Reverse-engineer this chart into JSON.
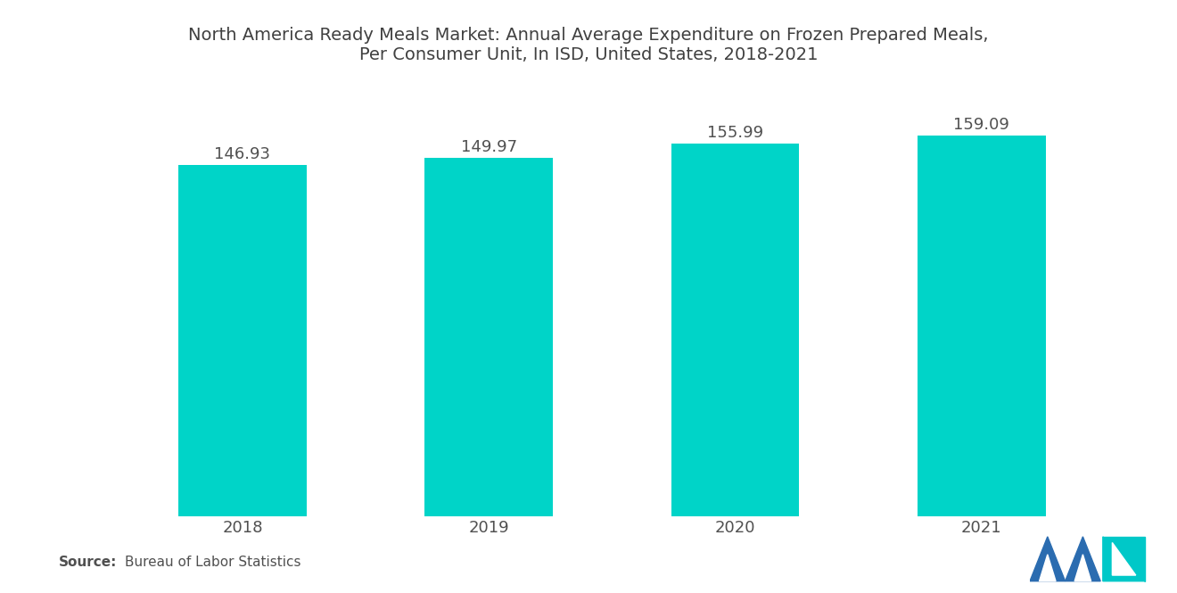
{
  "title_line1": "North America Ready Meals Market: Annual Average Expenditure on Frozen Prepared Meals,",
  "title_line2": "Per Consumer Unit, In ISD, United States, 2018-2021",
  "categories": [
    "2018",
    "2019",
    "2020",
    "2021"
  ],
  "values": [
    146.93,
    149.97,
    155.99,
    159.09
  ],
  "bar_color": "#00D4C8",
  "background_color": "#ffffff",
  "title_color": "#404040",
  "label_color": "#505050",
  "tick_color": "#505050",
  "source_bold": "Source:",
  "source_text": "Bureau of Labor Statistics",
  "bar_width": 0.52,
  "ylim_min": 0,
  "ylim_max": 180,
  "value_fontsize": 13,
  "title_fontsize": 14,
  "tick_fontsize": 13,
  "source_fontsize": 11,
  "logo_blue": "#2B6CB0",
  "logo_teal": "#00C8C8"
}
